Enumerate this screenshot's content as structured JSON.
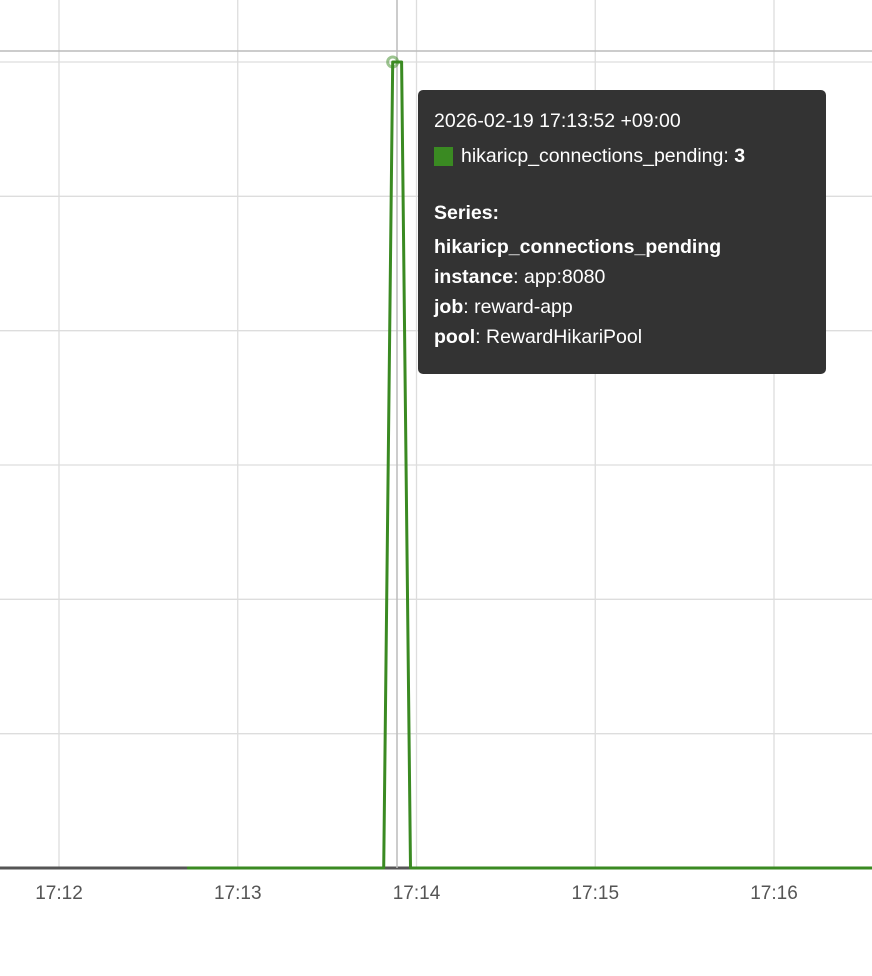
{
  "chart_data": {
    "type": "line",
    "x_ticks": [
      "17:12",
      "17:13",
      "17:14",
      "17:15",
      "17:16"
    ],
    "x_range": [
      "17:12:00",
      "17:16:33"
    ],
    "ylim": [
      0,
      3
    ],
    "y_grid_step": 0.5,
    "grid": true,
    "series": [
      {
        "name": "hikaricp_connections_pending",
        "color": "#3a8a22",
        "points": [
          [
            "17:12:43",
            0
          ],
          [
            "17:13:49",
            0
          ],
          [
            "17:13:52",
            3
          ],
          [
            "17:13:55",
            3
          ],
          [
            "17:13:58",
            0
          ],
          [
            "17:16:33",
            0
          ]
        ]
      }
    ],
    "hover": {
      "time": "17:13:52",
      "value": 3
    }
  },
  "tooltip": {
    "timestamp": "2026-02-19 17:13:52 +09:00",
    "metric": "hikaricp_connections_pending",
    "value": "3",
    "swatch_color": "#3a8a22",
    "series_heading": "Series:",
    "series_name": "hikaricp_connections_pending",
    "labels": [
      {
        "key": "instance",
        "value": "app:8080"
      },
      {
        "key": "job",
        "value": "reward-app"
      },
      {
        "key": "pool",
        "value": "RewardHikariPool"
      }
    ]
  }
}
